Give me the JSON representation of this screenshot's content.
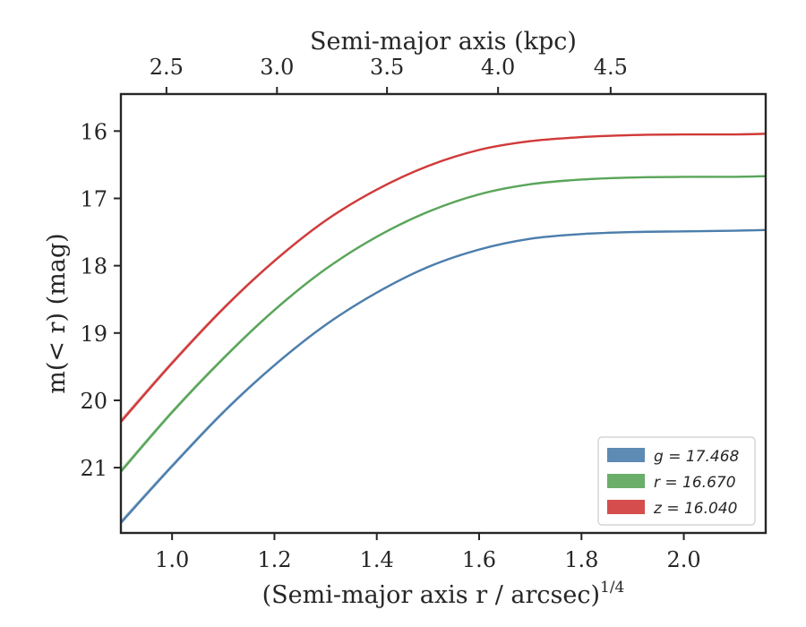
{
  "chart_data": {
    "type": "line",
    "xlabel": "(Semi-major axis r / arcsec)",
    "xlabel_sup": "1/4",
    "ylabel": "m(< r) (mag)",
    "x2label": "Semi-major axis (kpc)",
    "xlim": [
      0.9,
      2.16
    ],
    "ylim": [
      21.97,
      15.45
    ],
    "y_inverted": true,
    "x_ticks": [
      "1.0",
      "1.2",
      "1.4",
      "1.6",
      "1.8",
      "2.0"
    ],
    "y_ticks": [
      "16",
      "17",
      "18",
      "19",
      "20",
      "21"
    ],
    "x2_ticks": [
      "2.5",
      "3.0",
      "3.5",
      "4.0",
      "4.5"
    ],
    "x2_tick_positions_in_x_units": [
      0.989,
      1.205,
      1.42,
      1.637,
      1.857
    ],
    "grid": false,
    "legend_position": "lower-right",
    "series": [
      {
        "name": "g = 17.468",
        "color": "#4c7eac",
        "x": [
          0.9,
          1.0,
          1.1,
          1.2,
          1.3,
          1.4,
          1.5,
          1.6,
          1.7,
          1.8,
          1.9,
          2.0,
          2.1,
          2.16
        ],
        "y": [
          21.82,
          20.98,
          20.18,
          19.48,
          18.88,
          18.4,
          18.02,
          17.76,
          17.6,
          17.53,
          17.5,
          17.49,
          17.48,
          17.47
        ]
      },
      {
        "name": "r = 16.670",
        "color": "#5aa55a",
        "x": [
          0.9,
          1.0,
          1.1,
          1.2,
          1.3,
          1.4,
          1.5,
          1.6,
          1.7,
          1.8,
          1.9,
          2.0,
          2.1,
          2.16
        ],
        "y": [
          21.06,
          20.18,
          19.38,
          18.66,
          18.05,
          17.57,
          17.2,
          16.94,
          16.79,
          16.72,
          16.69,
          16.68,
          16.68,
          16.67
        ]
      },
      {
        "name": "z = 16.040",
        "color": "#d13a3a",
        "x": [
          0.9,
          1.0,
          1.1,
          1.2,
          1.3,
          1.4,
          1.5,
          1.6,
          1.7,
          1.8,
          1.9,
          2.0,
          2.1,
          2.16
        ],
        "y": [
          20.32,
          19.45,
          18.64,
          17.93,
          17.33,
          16.87,
          16.52,
          16.28,
          16.15,
          16.09,
          16.06,
          16.05,
          16.05,
          16.04
        ]
      }
    ]
  }
}
